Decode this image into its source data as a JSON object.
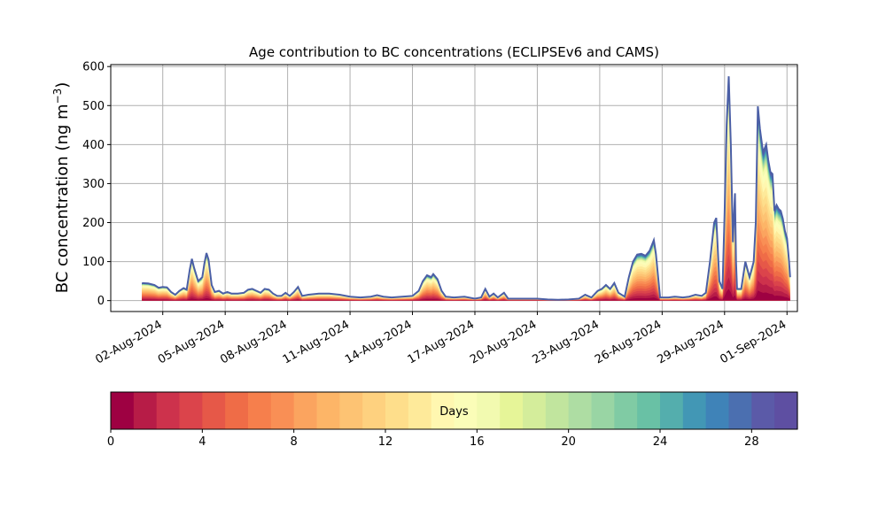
{
  "chart_data": {
    "type": "area",
    "title": "Age contribution to BC concentrations (ECLIPSEv6 and CAMS)",
    "ylabel_main": "BC concentration (ng m",
    "ylabel_sup": "−3",
    "ylabel_close": ")",
    "xlabel": "",
    "x_unit": "day of period starting 01-Aug-2024",
    "xlim": [
      -0.5,
      32.5
    ],
    "ylim": [
      -28,
      605
    ],
    "grid": true,
    "yticks": [
      0,
      100,
      200,
      300,
      400,
      500,
      600
    ],
    "yticklabels": [
      "0",
      "100",
      "200",
      "300",
      "400",
      "500",
      "600"
    ],
    "xticks": [
      {
        "pos": 2,
        "label": "02-Aug-2024"
      },
      {
        "pos": 5,
        "label": "05-Aug-2024"
      },
      {
        "pos": 8,
        "label": "08-Aug-2024"
      },
      {
        "pos": 11,
        "label": "11-Aug-2024"
      },
      {
        "pos": 14,
        "label": "14-Aug-2024"
      },
      {
        "pos": 17,
        "label": "17-Aug-2024"
      },
      {
        "pos": 20,
        "label": "20-Aug-2024"
      },
      {
        "pos": 23,
        "label": "23-Aug-2024"
      },
      {
        "pos": 26,
        "label": "26-Aug-2024"
      },
      {
        "pos": 29,
        "label": "29-Aug-2024"
      },
      {
        "pos": 32,
        "label": "01-Sep-2024"
      }
    ],
    "total": [
      [
        1.0,
        45
      ],
      [
        1.3,
        44
      ],
      [
        1.6,
        40
      ],
      [
        1.8,
        33
      ],
      [
        2.0,
        35
      ],
      [
        2.2,
        34
      ],
      [
        2.4,
        22
      ],
      [
        2.6,
        15
      ],
      [
        2.8,
        25
      ],
      [
        3.0,
        32
      ],
      [
        3.15,
        28
      ],
      [
        3.3,
        80
      ],
      [
        3.4,
        107
      ],
      [
        3.5,
        85
      ],
      [
        3.7,
        50
      ],
      [
        3.9,
        60
      ],
      [
        4.0,
        95
      ],
      [
        4.1,
        122
      ],
      [
        4.2,
        105
      ],
      [
        4.35,
        40
      ],
      [
        4.5,
        22
      ],
      [
        4.7,
        25
      ],
      [
        4.9,
        18
      ],
      [
        5.1,
        22
      ],
      [
        5.3,
        18
      ],
      [
        5.6,
        18
      ],
      [
        5.9,
        20
      ],
      [
        6.1,
        28
      ],
      [
        6.3,
        30
      ],
      [
        6.5,
        25
      ],
      [
        6.7,
        20
      ],
      [
        6.9,
        30
      ],
      [
        7.1,
        28
      ],
      [
        7.3,
        18
      ],
      [
        7.5,
        12
      ],
      [
        7.7,
        12
      ],
      [
        7.9,
        20
      ],
      [
        8.1,
        12
      ],
      [
        8.3,
        22
      ],
      [
        8.5,
        35
      ],
      [
        8.7,
        12
      ],
      [
        9.0,
        15
      ],
      [
        9.5,
        18
      ],
      [
        10.0,
        18
      ],
      [
        10.5,
        15
      ],
      [
        11.0,
        10
      ],
      [
        11.5,
        8
      ],
      [
        12.0,
        10
      ],
      [
        12.3,
        14
      ],
      [
        12.6,
        10
      ],
      [
        13.0,
        8
      ],
      [
        13.5,
        10
      ],
      [
        14.0,
        12
      ],
      [
        14.3,
        25
      ],
      [
        14.5,
        50
      ],
      [
        14.7,
        65
      ],
      [
        14.9,
        60
      ],
      [
        15.0,
        68
      ],
      [
        15.2,
        55
      ],
      [
        15.4,
        25
      ],
      [
        15.6,
        10
      ],
      [
        16.0,
        8
      ],
      [
        16.5,
        10
      ],
      [
        17.0,
        5
      ],
      [
        17.3,
        8
      ],
      [
        17.5,
        30
      ],
      [
        17.7,
        10
      ],
      [
        17.9,
        18
      ],
      [
        18.1,
        8
      ],
      [
        18.4,
        20
      ],
      [
        18.6,
        5
      ],
      [
        19.0,
        5
      ],
      [
        19.5,
        5
      ],
      [
        20.0,
        5
      ],
      [
        20.5,
        3
      ],
      [
        21.0,
        2
      ],
      [
        21.5,
        3
      ],
      [
        22.0,
        5
      ],
      [
        22.3,
        15
      ],
      [
        22.6,
        8
      ],
      [
        22.9,
        25
      ],
      [
        23.1,
        30
      ],
      [
        23.3,
        40
      ],
      [
        23.5,
        30
      ],
      [
        23.7,
        45
      ],
      [
        23.9,
        20
      ],
      [
        24.2,
        10
      ],
      [
        24.4,
        60
      ],
      [
        24.6,
        100
      ],
      [
        24.8,
        118
      ],
      [
        25.0,
        120
      ],
      [
        25.2,
        115
      ],
      [
        25.4,
        128
      ],
      [
        25.6,
        155
      ],
      [
        25.7,
        120
      ],
      [
        25.9,
        8
      ],
      [
        26.3,
        8
      ],
      [
        26.6,
        10
      ],
      [
        27.0,
        8
      ],
      [
        27.3,
        10
      ],
      [
        27.6,
        15
      ],
      [
        27.9,
        12
      ],
      [
        28.1,
        20
      ],
      [
        28.3,
        100
      ],
      [
        28.5,
        200
      ],
      [
        28.6,
        212
      ],
      [
        28.75,
        50
      ],
      [
        28.9,
        30
      ],
      [
        29.0,
        220
      ],
      [
        29.1,
        450
      ],
      [
        29.2,
        575
      ],
      [
        29.3,
        400
      ],
      [
        29.4,
        150
      ],
      [
        29.5,
        275
      ],
      [
        29.55,
        100
      ],
      [
        29.6,
        30
      ],
      [
        29.8,
        30
      ],
      [
        30.0,
        100
      ],
      [
        30.2,
        60
      ],
      [
        30.4,
        100
      ],
      [
        30.5,
        200
      ],
      [
        30.6,
        498
      ],
      [
        30.7,
        440
      ],
      [
        30.85,
        380
      ],
      [
        31.0,
        400
      ],
      [
        31.1,
        360
      ],
      [
        31.2,
        330
      ],
      [
        31.3,
        325
      ],
      [
        31.4,
        230
      ],
      [
        31.5,
        245
      ],
      [
        31.6,
        235
      ],
      [
        31.7,
        230
      ],
      [
        31.8,
        210
      ],
      [
        31.9,
        178
      ],
      [
        32.0,
        160
      ],
      [
        32.1,
        100
      ],
      [
        32.15,
        60
      ]
    ],
    "colorbar": {
      "label": "Days",
      "min": 0,
      "max": 30,
      "bins": 30,
      "ticks": [
        0,
        4,
        8,
        12,
        16,
        20,
        24,
        28
      ],
      "ticklabels": [
        "0",
        "4",
        "8",
        "12",
        "16",
        "20",
        "24",
        "28"
      ],
      "colors": [
        "#9e0142",
        "#b71c47",
        "#cd324c",
        "#db444b",
        "#e65848",
        "#ef6c47",
        "#f67f4c",
        "#f98f55",
        "#fba45f",
        "#fdb567",
        "#fdc373",
        "#fed17f",
        "#fede8b",
        "#feea9a",
        "#fff7b0",
        "#fbfdb8",
        "#f2fab0",
        "#e6f598",
        "#d4ed9b",
        "#c1e59e",
        "#aedda3",
        "#99d5a4",
        "#80cba4",
        "#69c1a5",
        "#54aead",
        "#4297b5",
        "#3f83b8",
        "#4b6fb0",
        "#5b5aa8",
        "#5e4fa2"
      ]
    }
  }
}
